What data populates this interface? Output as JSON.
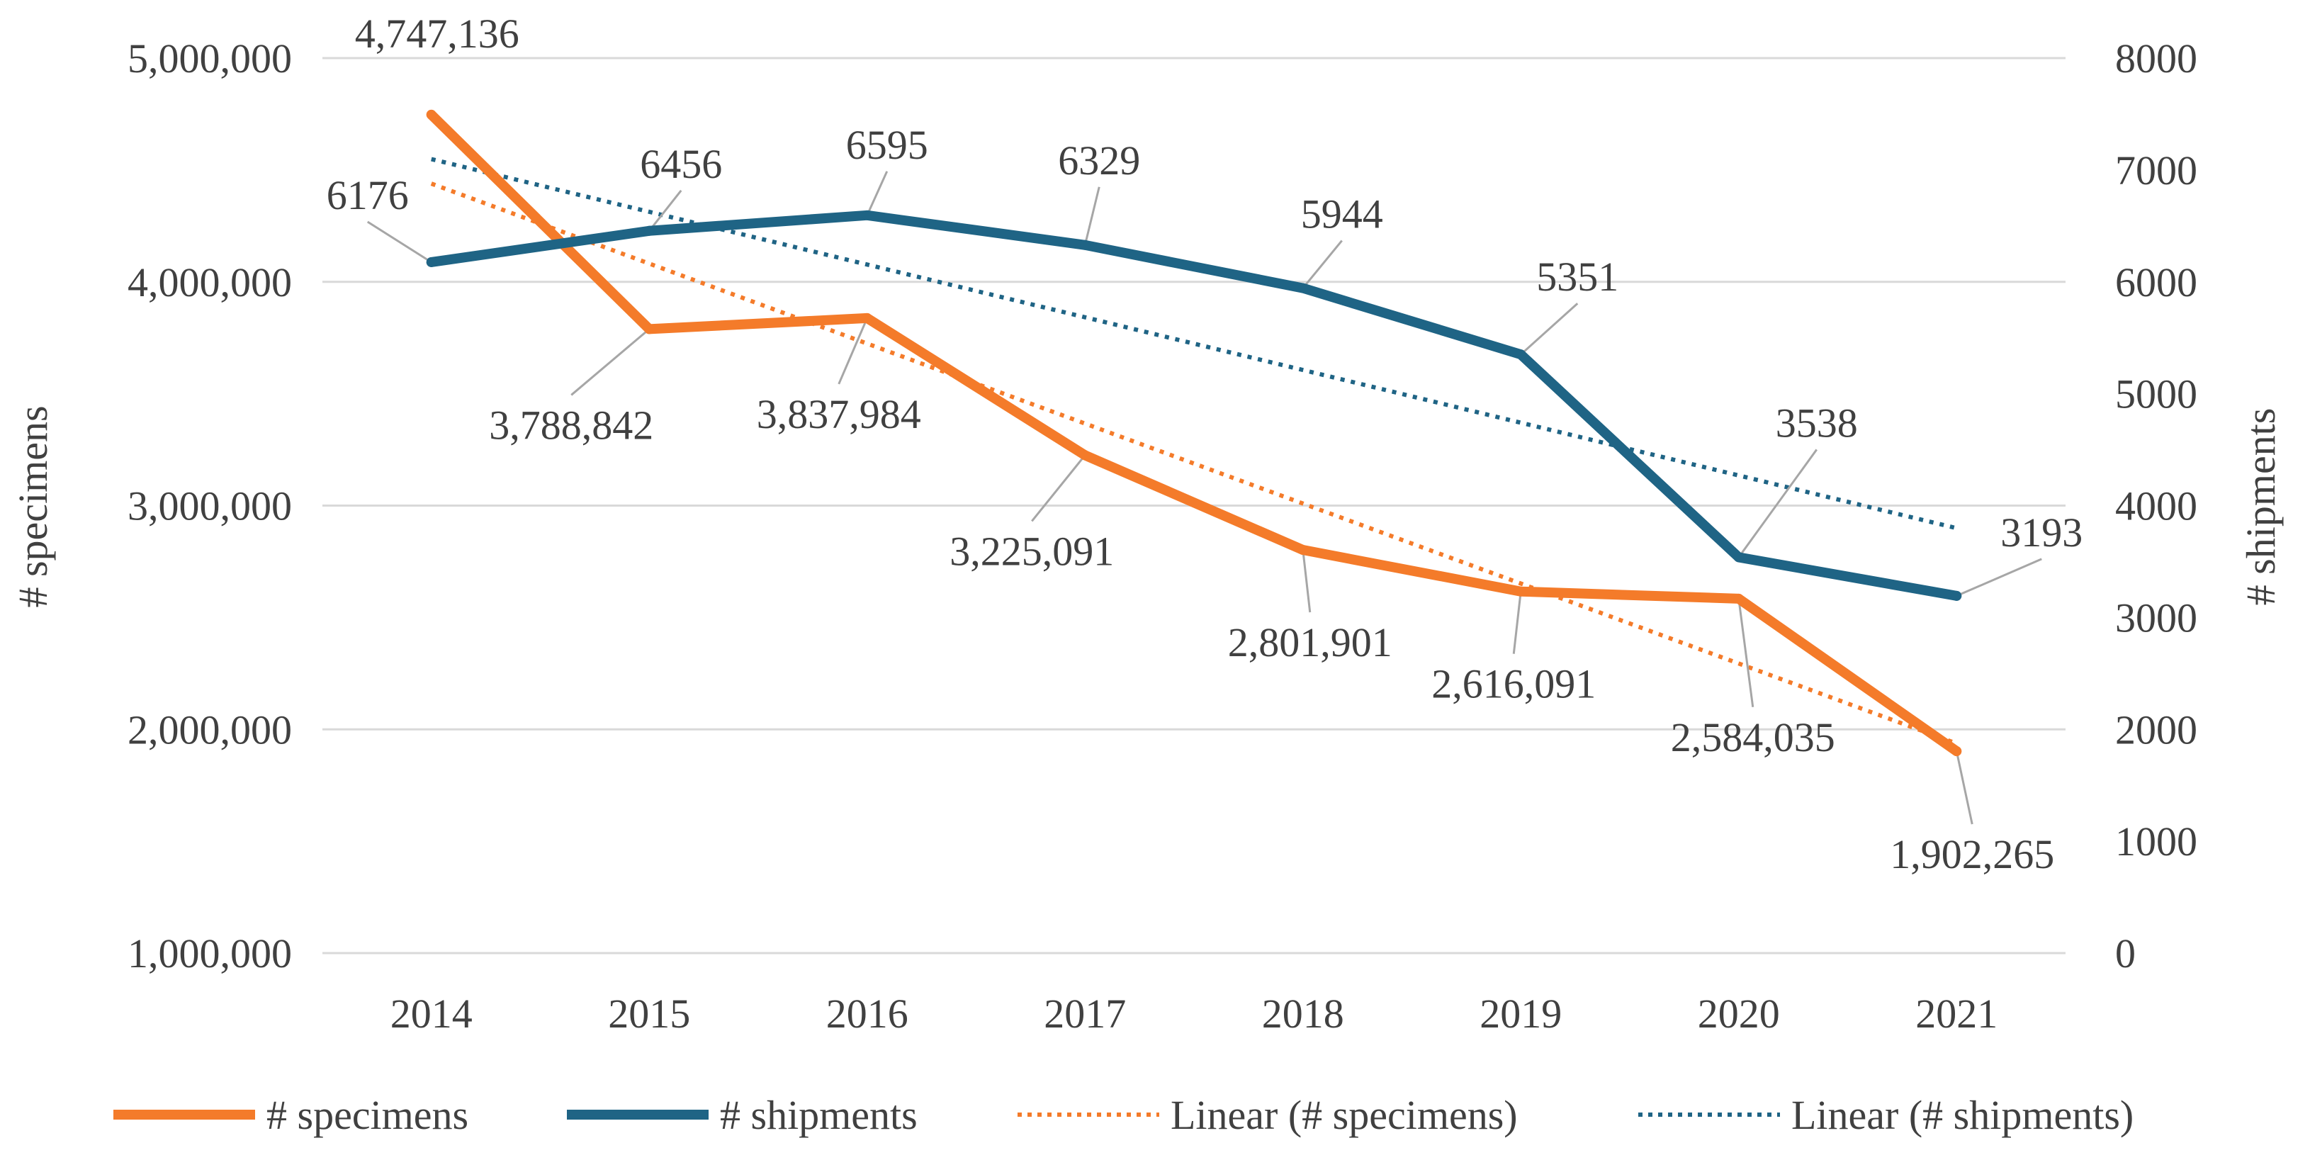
{
  "chart_data": {
    "type": "line",
    "categories": [
      "2014",
      "2015",
      "2016",
      "2017",
      "2018",
      "2019",
      "2020",
      "2021"
    ],
    "series": [
      {
        "name": "# specimens",
        "axis": "left",
        "color": "#F47B2A",
        "values": [
          4747136,
          3788842,
          3837984,
          3225091,
          2801901,
          2616091,
          2584035,
          1902265
        ],
        "labels": [
          "4,747,136",
          "3,788,842",
          "3,837,984",
          "3,225,091",
          "2,801,901",
          "2,616,091",
          "2,584,035",
          "1,902,265"
        ]
      },
      {
        "name": "# shipments",
        "axis": "right",
        "color": "#1F6485",
        "values": [
          6176,
          6456,
          6595,
          6329,
          5944,
          5351,
          3538,
          3193
        ],
        "labels": [
          "6176",
          "6456",
          "6595",
          "6329",
          "5944",
          "5351",
          "3538",
          "3193"
        ]
      }
    ],
    "trendlines": [
      {
        "name": "Linear (# specimens)",
        "of": "# specimens",
        "style": "dotted",
        "color": "#F47B2A"
      },
      {
        "name": "Linear (# shipments)",
        "of": "# shipments",
        "style": "dotted",
        "color": "#1F6485"
      }
    ],
    "y_left": {
      "label": "# specimens",
      "range": [
        1000000,
        5000000
      ],
      "ticks": [
        1000000,
        2000000,
        3000000,
        4000000,
        5000000
      ],
      "tick_labels": [
        "1,000,000",
        "2,000,000",
        "3,000,000",
        "4,000,000",
        "5,000,000"
      ]
    },
    "y_right": {
      "label": "# shipments",
      "range": [
        0,
        8000
      ],
      "ticks": [
        0,
        1000,
        2000,
        3000,
        4000,
        5000,
        6000,
        7000,
        8000
      ],
      "tick_labels": [
        "0",
        "1000",
        "2000",
        "3000",
        "4000",
        "5000",
        "6000",
        "7000",
        "8000"
      ]
    },
    "grid": true,
    "legend_position": "bottom",
    "legend": [
      "# specimens",
      "# shipments",
      "Linear (# specimens)",
      "Linear (# shipments)"
    ]
  }
}
